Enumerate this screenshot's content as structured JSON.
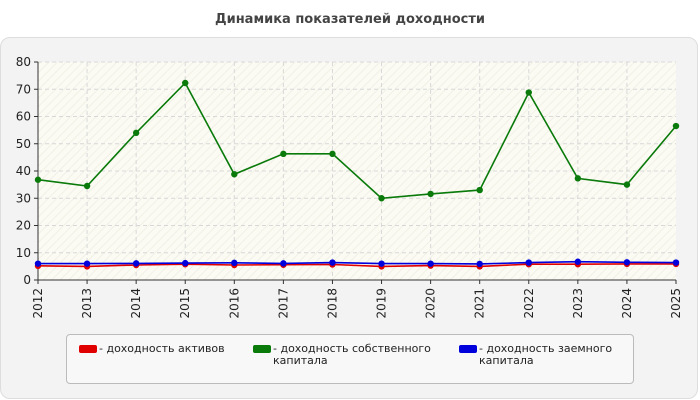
{
  "chart_data": {
    "type": "line",
    "title": "Динамика показателей доходности",
    "x": [
      "2012",
      "2013",
      "2014",
      "2015",
      "2016",
      "2017",
      "2018",
      "2019",
      "2020",
      "2021",
      "2022",
      "2023",
      "2024",
      "2025"
    ],
    "ylim": [
      0,
      80
    ],
    "yticks": [
      "0",
      "10",
      "20",
      "30",
      "40",
      "50",
      "60",
      "70",
      "80"
    ],
    "grid": true,
    "legend_position": "bottom",
    "series": [
      {
        "name": "- доходность активов",
        "color": "#e00000",
        "values": [
          5.2,
          5.0,
          5.5,
          5.8,
          5.5,
          5.6,
          5.7,
          5.0,
          5.3,
          5.0,
          5.8,
          5.8,
          5.9,
          5.9
        ]
      },
      {
        "name": "- доходность собственного капитала",
        "color": "#0a7a0a",
        "values": [
          36.8,
          34.5,
          54.0,
          72.3,
          38.8,
          46.3,
          46.3,
          30.0,
          31.6,
          33.0,
          68.8,
          37.3,
          35.0,
          56.5
        ]
      },
      {
        "name": "- доходность заемного капитала",
        "color": "#0000dd",
        "values": [
          6.0,
          6.0,
          6.1,
          6.2,
          6.3,
          6.1,
          6.4,
          6.0,
          6.0,
          5.9,
          6.4,
          6.7,
          6.5,
          6.4
        ]
      }
    ]
  }
}
